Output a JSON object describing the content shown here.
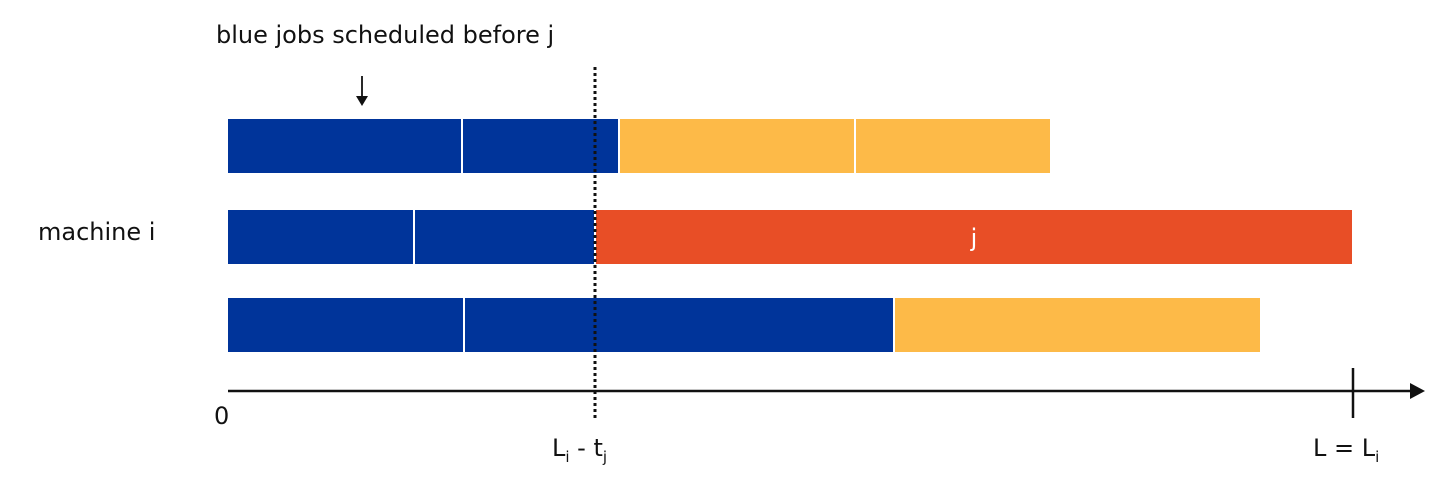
{
  "annotation": "blue jobs scheduled before j",
  "machine_label": "machine i",
  "axis": {
    "origin_label": "0",
    "end_label_main": "L = L",
    "end_label_sub": "i",
    "mid_label_L": "L",
    "mid_label_L_sub": "i",
    "mid_label_minus": " - t",
    "mid_label_t_sub": "j"
  },
  "colors": {
    "blue": "#00349A",
    "yellow": "#FDBA48",
    "orange": "#E84E26"
  },
  "rows": [
    {
      "segments": [
        {
          "start": 0,
          "end": 234,
          "color": "blue"
        },
        {
          "start": 234,
          "end": 391,
          "color": "blue"
        },
        {
          "start": 391,
          "end": 627,
          "color": "yellow"
        },
        {
          "start": 627,
          "end": 823,
          "color": "yellow"
        }
      ]
    },
    {
      "segments": [
        {
          "start": 0,
          "end": 186,
          "color": "blue"
        },
        {
          "start": 186,
          "end": 367,
          "color": "blue"
        },
        {
          "start": 367,
          "end": 1125,
          "color": "orange",
          "label": "j"
        }
      ]
    },
    {
      "segments": [
        {
          "start": 0,
          "end": 236,
          "color": "blue"
        },
        {
          "start": 236,
          "end": 666,
          "color": "blue"
        },
        {
          "start": 666,
          "end": 1033,
          "color": "yellow"
        }
      ]
    }
  ],
  "markers": {
    "dotted_line_at": 367,
    "L_at": 1125
  }
}
